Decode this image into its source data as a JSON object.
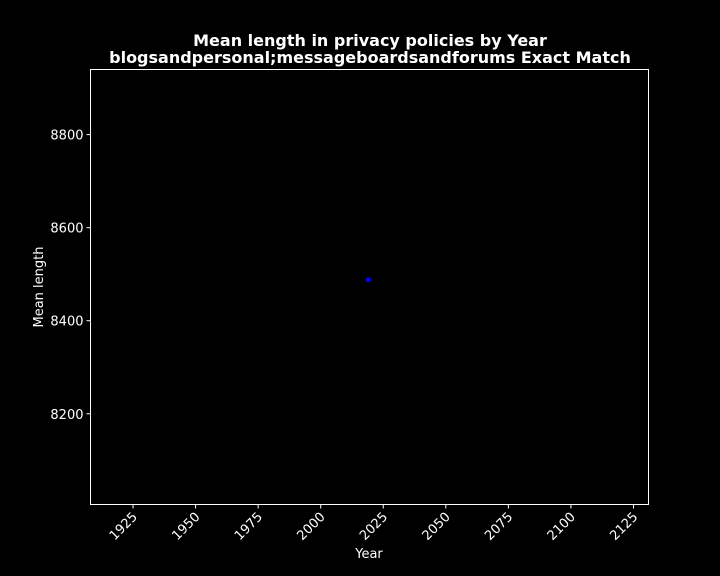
{
  "chart_data": {
    "type": "scatter",
    "title_line1": "Mean length in privacy policies by Year",
    "title_line2": "blogsandpersonal;messageboardsandforums Exact Match",
    "xlabel": "Year",
    "ylabel": "Mean length",
    "xlim": [
      1908,
      2131
    ],
    "ylim": [
      8005,
      8940
    ],
    "xticks": [
      1925,
      1950,
      1975,
      2000,
      2025,
      2050,
      2075,
      2100,
      2125
    ],
    "yticks": [
      8200,
      8400,
      8600,
      8800
    ],
    "points": [
      {
        "x": 2019,
        "y": 8488
      }
    ],
    "colors": {
      "background": "#000000",
      "foreground": "#ffffff",
      "marker": "#0000ff"
    },
    "grid": false
  }
}
